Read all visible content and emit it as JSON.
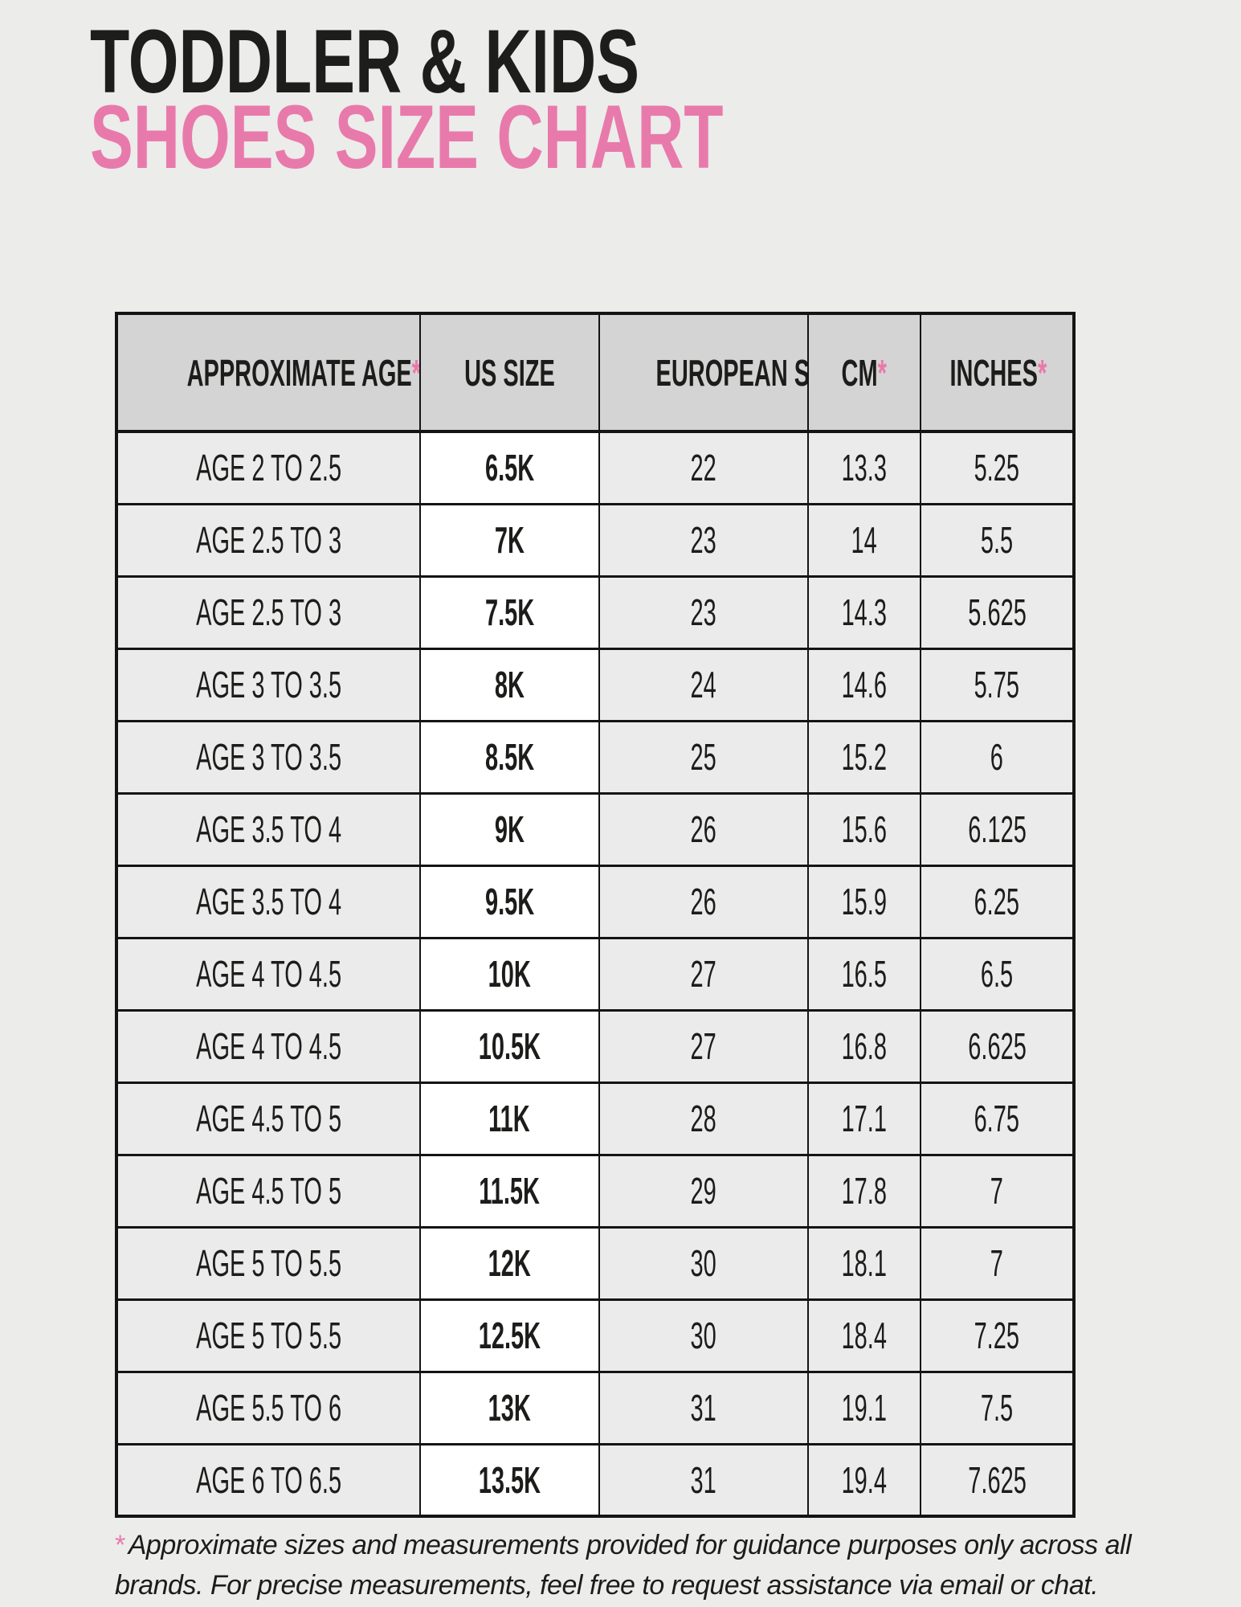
{
  "colors": {
    "page_background": "#ececea",
    "accent_pink": "#e87aab",
    "text_black": "#1d1d1b",
    "header_cell_gray": "#d4d4d4",
    "row_gray": "#ebebeb",
    "us_size_column_white": "#ffffff",
    "border_black": "#141414"
  },
  "title": {
    "line1": "TODDLER & KIDS",
    "line2": "SHOES SIZE CHART"
  },
  "table": {
    "columns": [
      {
        "label": "APPROXIMATE AGE",
        "asterisk": "*"
      },
      {
        "label": "US SIZE",
        "asterisk": ""
      },
      {
        "label": "EUROPEAN SIZE",
        "asterisk": ""
      },
      {
        "label": "CM",
        "asterisk": "*"
      },
      {
        "label": "INCHES",
        "asterisk": "*"
      }
    ],
    "rows": [
      [
        "AGE 2 TO 2.5",
        "6.5K",
        "22",
        "13.3",
        "5.25"
      ],
      [
        "AGE 2.5 TO 3",
        "7K",
        "23",
        "14",
        "5.5"
      ],
      [
        "AGE 2.5 TO 3",
        "7.5K",
        "23",
        "14.3",
        "5.625"
      ],
      [
        "AGE 3 TO 3.5",
        "8K",
        "24",
        "14.6",
        "5.75"
      ],
      [
        "AGE 3 TO 3.5",
        "8.5K",
        "25",
        "15.2",
        "6"
      ],
      [
        "AGE 3.5 TO 4",
        "9K",
        "26",
        "15.6",
        "6.125"
      ],
      [
        "AGE 3.5 TO 4",
        "9.5K",
        "26",
        "15.9",
        "6.25"
      ],
      [
        "AGE 4 TO 4.5",
        "10K",
        "27",
        "16.5",
        "6.5"
      ],
      [
        "AGE 4 TO 4.5",
        "10.5K",
        "27",
        "16.8",
        "6.625"
      ],
      [
        "AGE 4.5 TO 5",
        "11K",
        "28",
        "17.1",
        "6.75"
      ],
      [
        "AGE 4.5 TO 5",
        "11.5K",
        "29",
        "17.8",
        "7"
      ],
      [
        "AGE 5 TO 5.5",
        "12K",
        "30",
        "18.1",
        "7"
      ],
      [
        "AGE 5 TO 5.5",
        "12.5K",
        "30",
        "18.4",
        "7.25"
      ],
      [
        "AGE 5.5 TO 6",
        "13K",
        "31",
        "19.1",
        "7.5"
      ],
      [
        "AGE 6 TO 6.5",
        "13.5K",
        "31",
        "19.4",
        "7.625"
      ]
    ]
  },
  "footnote": {
    "star": "*",
    "line1": "Approximate sizes and measurements provided for guidance purposes only across all",
    "line2": "brands. For precise measurements, feel free to request assistance via email or chat."
  }
}
